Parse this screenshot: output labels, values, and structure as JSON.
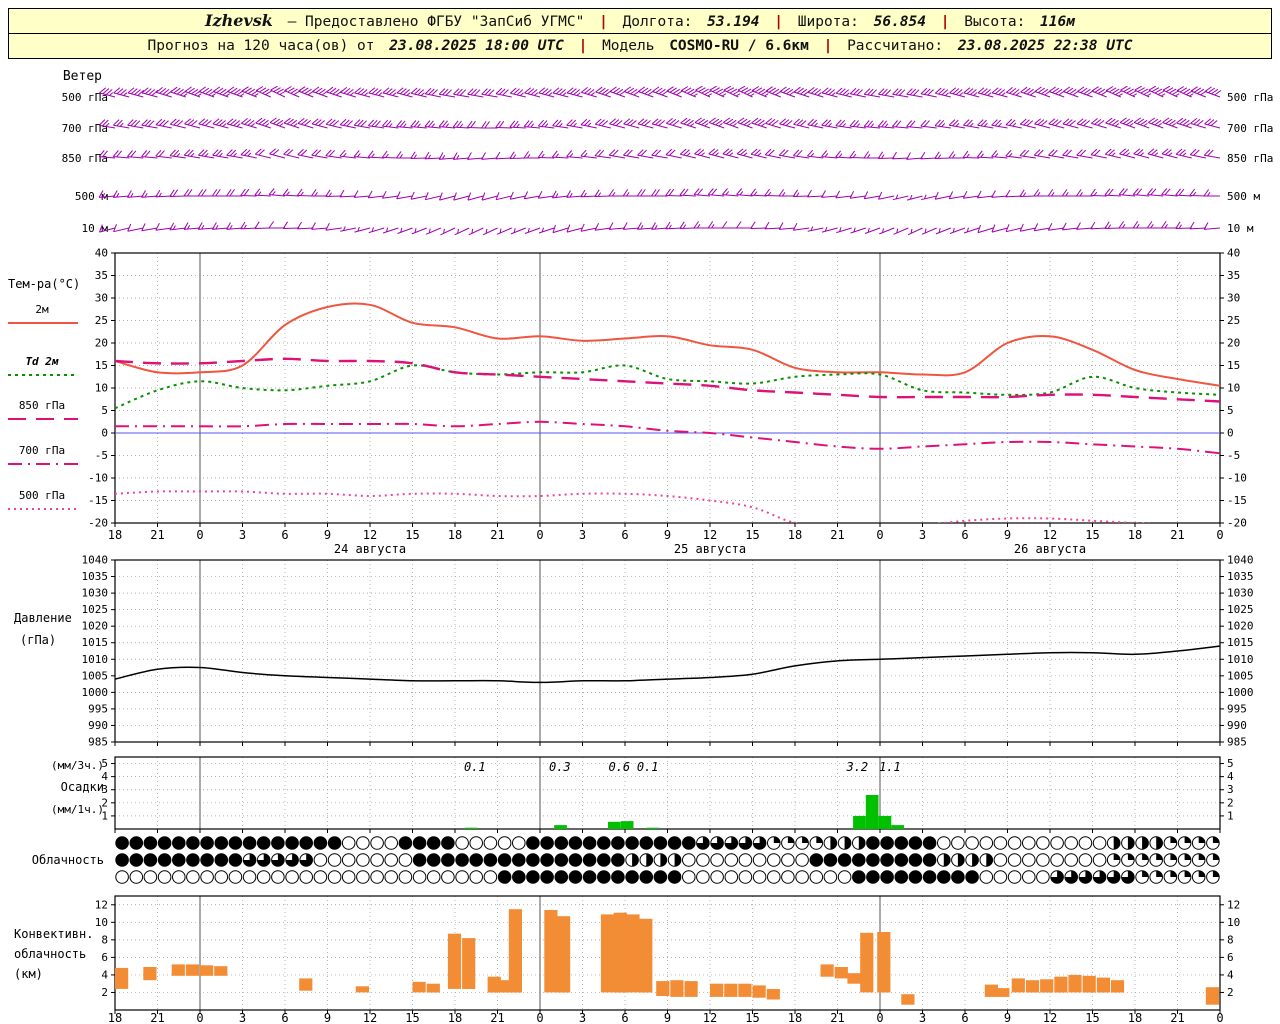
{
  "header": {
    "sep": "|",
    "line1": {
      "station": "Izhevsk",
      "provider": "— Предоставлено ФГБУ \"ЗапСиб УГМС\"",
      "lon_label": "Долгота:",
      "lon_value": "53.194",
      "lat_label": "Широта:",
      "lat_value": "56.854",
      "alt_label": "Высота:",
      "alt_value": "116м"
    },
    "line2": {
      "forecast_label": "Прогноз на 120 часа(ов) от",
      "run_time": "23.08.2025 18:00 UTC",
      "model_label": "Модель",
      "model_value": "COSMO-RU / 6.6км",
      "calc_label": "Рассчитано:",
      "calc_value": "23.08.2025 22:38 UTC"
    }
  },
  "colors": {
    "wind_barb": "#a000b0",
    "temp_2m": "#f05540",
    "dewpoint": "#089000",
    "t850": "#dd1177",
    "t700": "#dd1177",
    "t500": "#ee4499",
    "pressure": "#000000",
    "precip_bar": "#00c000",
    "conv_bar": "#f28c35",
    "zero_line": "#5555ee",
    "header_bg": "#ffffc8"
  },
  "x_axis": {
    "step_hours": 3,
    "hour_labels": [
      "18",
      "21",
      "0",
      "3",
      "6",
      "9",
      "12",
      "15",
      "18",
      "21",
      "0",
      "3",
      "6",
      "9",
      "12",
      "15",
      "18",
      "21",
      "0",
      "3",
      "6",
      "9",
      "12",
      "15",
      "18",
      "21",
      "0"
    ],
    "date_labels": [
      "24 августа",
      "25 августа",
      "26 августа"
    ]
  },
  "chart_data": [
    {
      "type": "wind-barbs",
      "title": "Ветер",
      "levels": [
        "500 гПа",
        "700 гПа",
        "850 гПа",
        "500 м",
        "10 м"
      ],
      "series": [
        {
          "level": "500 гПа",
          "dir_deg": [
            285,
            285,
            290,
            290,
            295,
            290,
            285,
            285,
            280,
            280,
            285,
            285,
            290,
            290,
            295,
            295,
            290,
            285,
            280,
            280,
            285,
            285,
            290,
            290,
            295,
            295,
            290
          ],
          "speed_kt": [
            35,
            40,
            45,
            45,
            40,
            40,
            35,
            35,
            30,
            30,
            35,
            35,
            40,
            40,
            45,
            45,
            40,
            35,
            30,
            30,
            35,
            35,
            40,
            40,
            45,
            45,
            40
          ]
        },
        {
          "level": "700 гПа",
          "dir_deg": [
            280,
            280,
            285,
            285,
            290,
            285,
            280,
            275,
            275,
            270,
            275,
            280,
            285,
            285,
            290,
            290,
            285,
            280,
            275,
            275,
            280,
            280,
            285,
            285,
            290,
            290,
            285
          ],
          "speed_kt": [
            25,
            30,
            30,
            35,
            35,
            30,
            30,
            25,
            25,
            20,
            25,
            25,
            30,
            30,
            35,
            35,
            30,
            25,
            25,
            20,
            25,
            25,
            30,
            30,
            35,
            35,
            30
          ]
        },
        {
          "level": "850 гПа",
          "dir_deg": [
            275,
            275,
            280,
            280,
            285,
            280,
            275,
            270,
            265,
            265,
            270,
            275,
            280,
            280,
            285,
            285,
            280,
            275,
            270,
            265,
            270,
            275,
            280,
            280,
            285,
            285,
            280
          ],
          "speed_kt": [
            20,
            20,
            25,
            25,
            20,
            20,
            15,
            15,
            15,
            10,
            15,
            15,
            20,
            20,
            25,
            25,
            20,
            15,
            15,
            10,
            15,
            15,
            20,
            20,
            25,
            25,
            20
          ]
        },
        {
          "level": "500 м",
          "dir_deg": [
            265,
            265,
            270,
            270,
            275,
            270,
            265,
            260,
            255,
            255,
            260,
            265,
            270,
            270,
            275,
            275,
            270,
            265,
            260,
            255,
            260,
            265,
            270,
            270,
            275,
            275,
            270
          ],
          "speed_kt": [
            15,
            15,
            20,
            20,
            15,
            15,
            10,
            10,
            10,
            10,
            10,
            15,
            15,
            20,
            20,
            15,
            15,
            10,
            10,
            5,
            10,
            10,
            15,
            15,
            20,
            20,
            15
          ]
        },
        {
          "level": "10 м",
          "dir_deg": [
            255,
            260,
            265,
            265,
            270,
            265,
            255,
            250,
            245,
            245,
            250,
            255,
            265,
            265,
            270,
            270,
            265,
            255,
            250,
            245,
            250,
            255,
            260,
            265,
            270,
            270,
            265
          ],
          "speed_kt": [
            10,
            10,
            15,
            15,
            10,
            10,
            5,
            5,
            5,
            5,
            5,
            10,
            10,
            15,
            15,
            10,
            10,
            5,
            5,
            5,
            5,
            10,
            10,
            10,
            15,
            15,
            10
          ]
        }
      ]
    },
    {
      "type": "line",
      "title": "Тем-ра(°C)",
      "ylim": [
        -20,
        40
      ],
      "ytick_step": 5,
      "series": [
        {
          "name": "2м",
          "color_key": "temp_2m",
          "style": "solid",
          "values": [
            16,
            13.5,
            13.5,
            15,
            24,
            28,
            28.5,
            24.5,
            23.5,
            21,
            21.5,
            20.5,
            21,
            21.5,
            19.5,
            18.5,
            14.5,
            13.5,
            13.5,
            13,
            13.5,
            20,
            21.5,
            18.5,
            14,
            12,
            10.5
          ]
        },
        {
          "name": "Td 2м",
          "color_key": "dewpoint",
          "style": "dotted",
          "values": [
            5.5,
            9.5,
            11.5,
            10,
            9.5,
            10.5,
            11.5,
            15,
            13.5,
            13,
            13.5,
            13.5,
            15,
            12,
            11.5,
            11,
            12.5,
            13,
            13,
            9.5,
            9,
            8.5,
            9,
            12.5,
            10,
            9,
            8.5
          ]
        },
        {
          "name": "850 гПа",
          "color_key": "t850",
          "style": "dashed",
          "values": [
            16,
            15.5,
            15.5,
            16,
            16.5,
            16,
            16,
            15.5,
            13.5,
            13,
            12.5,
            12,
            11.5,
            11,
            10.5,
            9.5,
            9,
            8.5,
            8,
            8,
            8,
            8,
            8.5,
            8.5,
            8,
            7.5,
            7
          ]
        },
        {
          "name": "700 гПа",
          "color_key": "t700",
          "style": "dashdot",
          "values": [
            1.5,
            1.5,
            1.5,
            1.5,
            2,
            2,
            2,
            2,
            1.5,
            2,
            2.5,
            2,
            1.5,
            0.5,
            0,
            -1,
            -2,
            -3,
            -3.5,
            -3,
            -2.5,
            -2,
            -2,
            -2.5,
            -3,
            -3.5,
            -4.5
          ]
        },
        {
          "name": "500 гПа",
          "color_key": "t500",
          "style": "fine-dotted",
          "values": [
            -13.5,
            -13,
            -13,
            -13,
            -13.5,
            -13.5,
            -14,
            -13.5,
            -13.5,
            -14,
            -14,
            -13.5,
            -13.5,
            -14,
            -15,
            -16.5,
            -20,
            -21,
            -21,
            -20.5,
            -19.5,
            -19,
            -19,
            -19.5,
            -20,
            -20.5,
            -21
          ]
        }
      ],
      "zero_line": true
    },
    {
      "type": "line",
      "title_lines": [
        "Давление",
        "(гПа)"
      ],
      "ylim": [
        985,
        1040
      ],
      "ytick_step": 5,
      "series": [
        {
          "name": "Давление",
          "color_key": "pressure",
          "style": "solid",
          "values": [
            1004,
            1007,
            1007.5,
            1006,
            1005,
            1004.5,
            1004,
            1003.5,
            1003.5,
            1003.5,
            1003,
            1003.5,
            1003.5,
            1004,
            1004.5,
            1005.5,
            1008,
            1009.5,
            1010,
            1010.5,
            1011,
            1011.5,
            1012,
            1012,
            1011.5,
            1012.5,
            1014
          ]
        }
      ]
    },
    {
      "type": "bar",
      "title_lines": [
        "(мм/3ч.)",
        "Осадки",
        "(мм/1ч.)"
      ],
      "ylim": [
        0,
        5.5
      ],
      "yticks": [
        1,
        2,
        3,
        4,
        5
      ],
      "bars": [
        [
          24.7,
          0.1
        ],
        [
          31,
          0.3
        ],
        [
          34.8,
          0.55
        ],
        [
          35.7,
          0.6
        ],
        [
          37.5,
          0.1
        ],
        [
          52.1,
          1.0
        ],
        [
          53,
          2.6
        ],
        [
          53.9,
          1.0
        ],
        [
          54.8,
          0.3
        ]
      ],
      "labels_3h": [
        [
          25.4,
          "0.1"
        ],
        [
          31.4,
          "0.3"
        ],
        [
          35.6,
          "0.6"
        ],
        [
          37.6,
          "0.1"
        ],
        [
          52.4,
          "3.2"
        ],
        [
          54.7,
          "1.1"
        ]
      ]
    },
    {
      "type": "cloud-cover",
      "title": "Облачность",
      "rows_okta": [
        "888888888888888800008888000008888888888886666622224448888800000000000044442222",
        "888888888666660000000888888888888888444400000000088888888844440000000022222222",
        "000000000000000000000000000888888888888800000000000088888888800000666666222222"
      ]
    },
    {
      "type": "range-bar",
      "title_lines": [
        "Конвективн.",
        "облачность",
        "(км)"
      ],
      "ylim": [
        0,
        13
      ],
      "yticks": [
        2,
        4,
        6,
        8,
        10,
        12
      ],
      "bars": [
        [
          0,
          2.4,
          4.8
        ],
        [
          2,
          3.4,
          4.9
        ],
        [
          4,
          3.9,
          5.2
        ],
        [
          5,
          3.9,
          5.2
        ],
        [
          6,
          3.9,
          5.1
        ],
        [
          7,
          3.9,
          5.0
        ],
        [
          13,
          2.2,
          3.6
        ],
        [
          17,
          2.0,
          2.7
        ],
        [
          21,
          2.0,
          3.2
        ],
        [
          22,
          2.0,
          3.0
        ],
        [
          23.5,
          2.4,
          8.7
        ],
        [
          24.5,
          2.4,
          8.2
        ],
        [
          26.3,
          2.0,
          3.8
        ],
        [
          27.2,
          2.0,
          3.4
        ],
        [
          27.8,
          2.0,
          11.5
        ],
        [
          30.3,
          2.0,
          11.4
        ],
        [
          31.2,
          2.0,
          10.7
        ],
        [
          34.3,
          2.0,
          10.9
        ],
        [
          35.2,
          2.0,
          11.1
        ],
        [
          36.1,
          2.0,
          10.9
        ],
        [
          37,
          2.0,
          10.4
        ],
        [
          38.2,
          1.6,
          3.3
        ],
        [
          39.2,
          1.5,
          3.4
        ],
        [
          40.2,
          1.5,
          3.3
        ],
        [
          42,
          1.5,
          3.0
        ],
        [
          43,
          1.5,
          3.0
        ],
        [
          44,
          1.5,
          3.0
        ],
        [
          45,
          1.4,
          2.8
        ],
        [
          46,
          1.2,
          2.4
        ],
        [
          49.8,
          3.8,
          5.2
        ],
        [
          50.8,
          3.6,
          4.9
        ],
        [
          51.7,
          3.0,
          4.2
        ],
        [
          52.6,
          2.0,
          8.8
        ],
        [
          53.8,
          2.0,
          8.9
        ],
        [
          55.5,
          0.6,
          1.8
        ],
        [
          61.4,
          1.5,
          2.9
        ],
        [
          62.2,
          1.5,
          2.5
        ],
        [
          63.3,
          2.0,
          3.6
        ],
        [
          64.3,
          2.0,
          3.4
        ],
        [
          65.3,
          2.0,
          3.5
        ],
        [
          66.3,
          2.0,
          3.8
        ],
        [
          67.3,
          2.0,
          4.0
        ],
        [
          68.3,
          2.0,
          3.9
        ],
        [
          69.3,
          2.0,
          3.7
        ],
        [
          70.3,
          2.0,
          3.4
        ],
        [
          77,
          0.6,
          2.6
        ]
      ]
    }
  ]
}
